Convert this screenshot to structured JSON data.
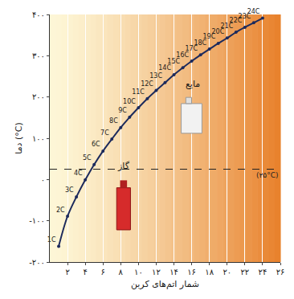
{
  "chart_data": {
    "type": "line",
    "x_label": "شمار اتم‌های کربن",
    "y_label": "دما (°C)",
    "x": [
      1,
      2,
      3,
      4,
      5,
      6,
      7,
      8,
      9,
      10,
      11,
      12,
      13,
      14,
      15,
      16,
      17,
      18,
      19,
      20,
      21,
      22,
      23,
      24
    ],
    "values": [
      -162,
      -89,
      -42,
      -1,
      36,
      69,
      98,
      126,
      151,
      174,
      196,
      216,
      235,
      254,
      271,
      287,
      302,
      316,
      330,
      343,
      357,
      369,
      380,
      391
    ],
    "point_labels": [
      "1C",
      "2C",
      "3C",
      "4C",
      "5C",
      "6C",
      "7C",
      "8C",
      "9C",
      "10C",
      "11C",
      "12C",
      "13C",
      "14C",
      "15C",
      "16C",
      "17C",
      "18C",
      "19C",
      "20C",
      "21C",
      "22C",
      "23C",
      "24C"
    ],
    "color": "#1c2a5c",
    "marker": "circle",
    "xlim": [
      0,
      26
    ],
    "xticks": [
      {
        "value": 2,
        "label": "۲"
      },
      {
        "value": 4,
        "label": "۴"
      },
      {
        "value": 6,
        "label": "۶"
      },
      {
        "value": 8,
        "label": "۸"
      },
      {
        "value": 10,
        "label": "۱۰"
      },
      {
        "value": 12,
        "label": "۱۲"
      },
      {
        "value": 14,
        "label": "۱۴"
      },
      {
        "value": 16,
        "label": "۱۶"
      },
      {
        "value": 18,
        "label": "۱۸"
      },
      {
        "value": 20,
        "label": "۲۰"
      },
      {
        "value": 22,
        "label": "۲۲"
      },
      {
        "value": 24,
        "label": "۲۴"
      },
      {
        "value": 26,
        "label": "۲۶"
      }
    ],
    "ylim": [
      -200,
      400
    ],
    "yticks": [
      {
        "value": -200,
        "label": "-۲۰۰"
      },
      {
        "value": -100,
        "label": "-۱۰۰"
      },
      {
        "value": 0,
        "label": "۰"
      },
      {
        "value": 100,
        "label": "۱۰۰"
      },
      {
        "value": 200,
        "label": "۲۰۰"
      },
      {
        "value": 300,
        "label": "۳۰۰"
      },
      {
        "value": 400,
        "label": "۴۰۰"
      }
    ],
    "grid": true,
    "reference_line": {
      "value": 25,
      "label": "(۲۵°C)",
      "line_style": "dashed"
    },
    "annotations": [
      "گاز",
      "مایع"
    ]
  }
}
